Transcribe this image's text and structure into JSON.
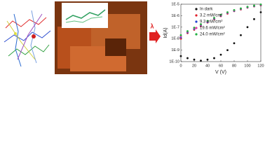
{
  "figure": {
    "arrow_label": "λ"
  },
  "chart_data": {
    "type": "scatter",
    "y_label": "Id(A)",
    "x_label": "V (V)",
    "x": [
      0,
      10,
      20,
      30,
      40,
      50,
      60,
      70,
      80,
      90,
      100,
      110,
      120
    ],
    "xlim": [
      0,
      120
    ],
    "xticks": [
      0,
      20,
      40,
      60,
      80,
      100,
      120
    ],
    "ylim": [
      1e-10,
      1e-05
    ],
    "log_y": true,
    "yticks": [
      {
        "value": 1e-10,
        "label": "1E-10"
      },
      {
        "value": 1e-09,
        "label": "1E-9"
      },
      {
        "value": 1e-08,
        "label": "1E-8"
      },
      {
        "value": 1e-07,
        "label": "1E-7"
      },
      {
        "value": 1e-06,
        "label": "1E-6"
      },
      {
        "value": 1e-05,
        "label": "1E-5"
      }
    ],
    "legend": "upper left",
    "series": [
      {
        "name": "In dark",
        "color": "#111111",
        "values": [
          3e-10,
          2e-10,
          1.5e-10,
          1.2e-10,
          1.5e-10,
          2e-10,
          4e-10,
          1e-09,
          4e-09,
          2e-08,
          1e-07,
          5e-07,
          2e-06
        ]
      },
      {
        "name": "3.2 mW/cm²",
        "color": "#e0202a",
        "values": [
          1e-08,
          3e-08,
          6e-08,
          1.2e-07,
          2.5e-07,
          5e-07,
          9e-07,
          1.5e-06,
          2.5e-06,
          3.5e-06,
          5e-06,
          6.5e-06,
          8e-06
        ]
      },
      {
        "name": "9.3 mW/cm²",
        "color": "#2040d0",
        "values": [
          1.3e-08,
          3.5e-08,
          7e-08,
          1.4e-07,
          2.8e-07,
          5.5e-07,
          1e-06,
          1.7e-06,
          2.7e-06,
          3.8e-06,
          5.3e-06,
          6.8e-06,
          8.5e-06
        ]
      },
      {
        "name": "19.6 mW/cm²",
        "color": "#e040a0",
        "values": [
          1.6e-08,
          4e-08,
          8e-08,
          1.6e-07,
          3.2e-07,
          6e-07,
          1.1e-06,
          1.8e-06,
          2.9e-06,
          4e-06,
          5.6e-06,
          7.2e-06,
          9e-06
        ]
      },
      {
        "name": "24.0 mW/cm²",
        "color": "#20b040",
        "values": [
          2e-08,
          4.5e-08,
          9e-08,
          1.8e-07,
          3.5e-07,
          6.5e-07,
          1.2e-06,
          2e-06,
          3.1e-06,
          4.3e-06,
          5.9e-06,
          7.6e-06,
          9.5e-06
        ]
      }
    ]
  }
}
